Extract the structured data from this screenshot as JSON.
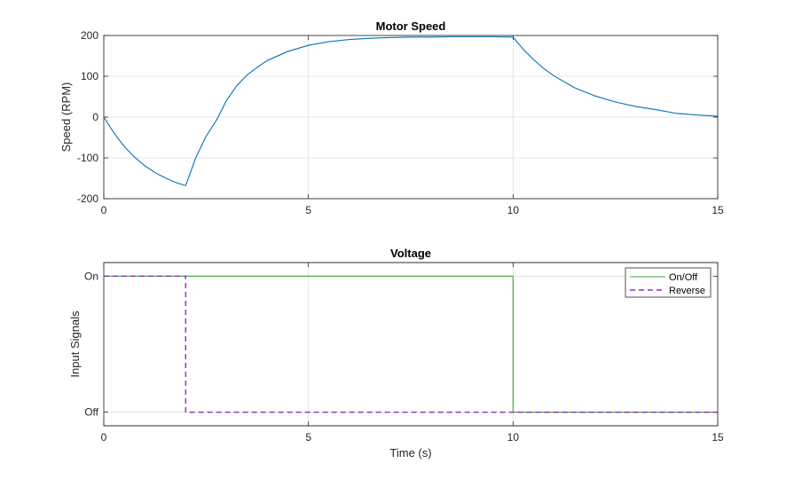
{
  "chart_data": [
    {
      "type": "line",
      "title": "Motor Speed",
      "xlabel": "",
      "ylabel": "Speed (RPM)",
      "xlim": [
        0,
        15
      ],
      "ylim": [
        -200,
        200
      ],
      "xticks": [
        0,
        5,
        10,
        15
      ],
      "yticks": [
        -200,
        -100,
        0,
        100,
        200
      ],
      "grid": true,
      "series": [
        {
          "color": "#0072bd",
          "x": [
            0,
            0.25,
            0.5,
            0.75,
            1,
            1.25,
            1.5,
            1.75,
            2,
            2.25,
            2.5,
            2.75,
            3,
            3.25,
            3.5,
            3.75,
            4,
            4.5,
            5,
            5.5,
            6,
            6.5,
            7,
            7.5,
            8,
            8.5,
            9,
            9.5,
            10,
            10.25,
            10.5,
            10.75,
            11,
            11.5,
            12,
            12.5,
            13,
            13.5,
            14,
            14.5,
            15
          ],
          "y": [
            0,
            -39,
            -72,
            -98,
            -119,
            -136,
            -149,
            -160,
            -168,
            -99,
            -47,
            -8,
            41,
            77,
            103,
            122,
            139,
            161,
            176,
            185,
            190,
            193,
            195,
            196,
            196,
            197,
            197,
            197,
            196,
            166,
            141,
            119,
            101,
            72,
            52,
            37,
            26,
            18,
            9,
            5,
            2
          ]
        }
      ]
    },
    {
      "type": "line",
      "title": "Voltage",
      "xlabel": "Time (s)",
      "ylabel": "Input Signals",
      "xlim": [
        0,
        15
      ],
      "ylim": [
        -0.1,
        1.1
      ],
      "xticks": [
        0,
        5,
        10,
        15
      ],
      "yticks": [
        0,
        1
      ],
      "ytick_labels": [
        "Off",
        "On"
      ],
      "grid": true,
      "legend": "top-right",
      "series": [
        {
          "name": "On/Off",
          "color": "#3da63d",
          "dash": "solid",
          "x": [
            0,
            10,
            10,
            15
          ],
          "y": [
            1,
            1,
            0,
            0
          ]
        },
        {
          "name": "Reverse",
          "color": "#8e2fbf",
          "dash": "dashed",
          "x": [
            0,
            2,
            2,
            15
          ],
          "y": [
            1,
            1,
            0,
            0
          ]
        }
      ]
    }
  ]
}
